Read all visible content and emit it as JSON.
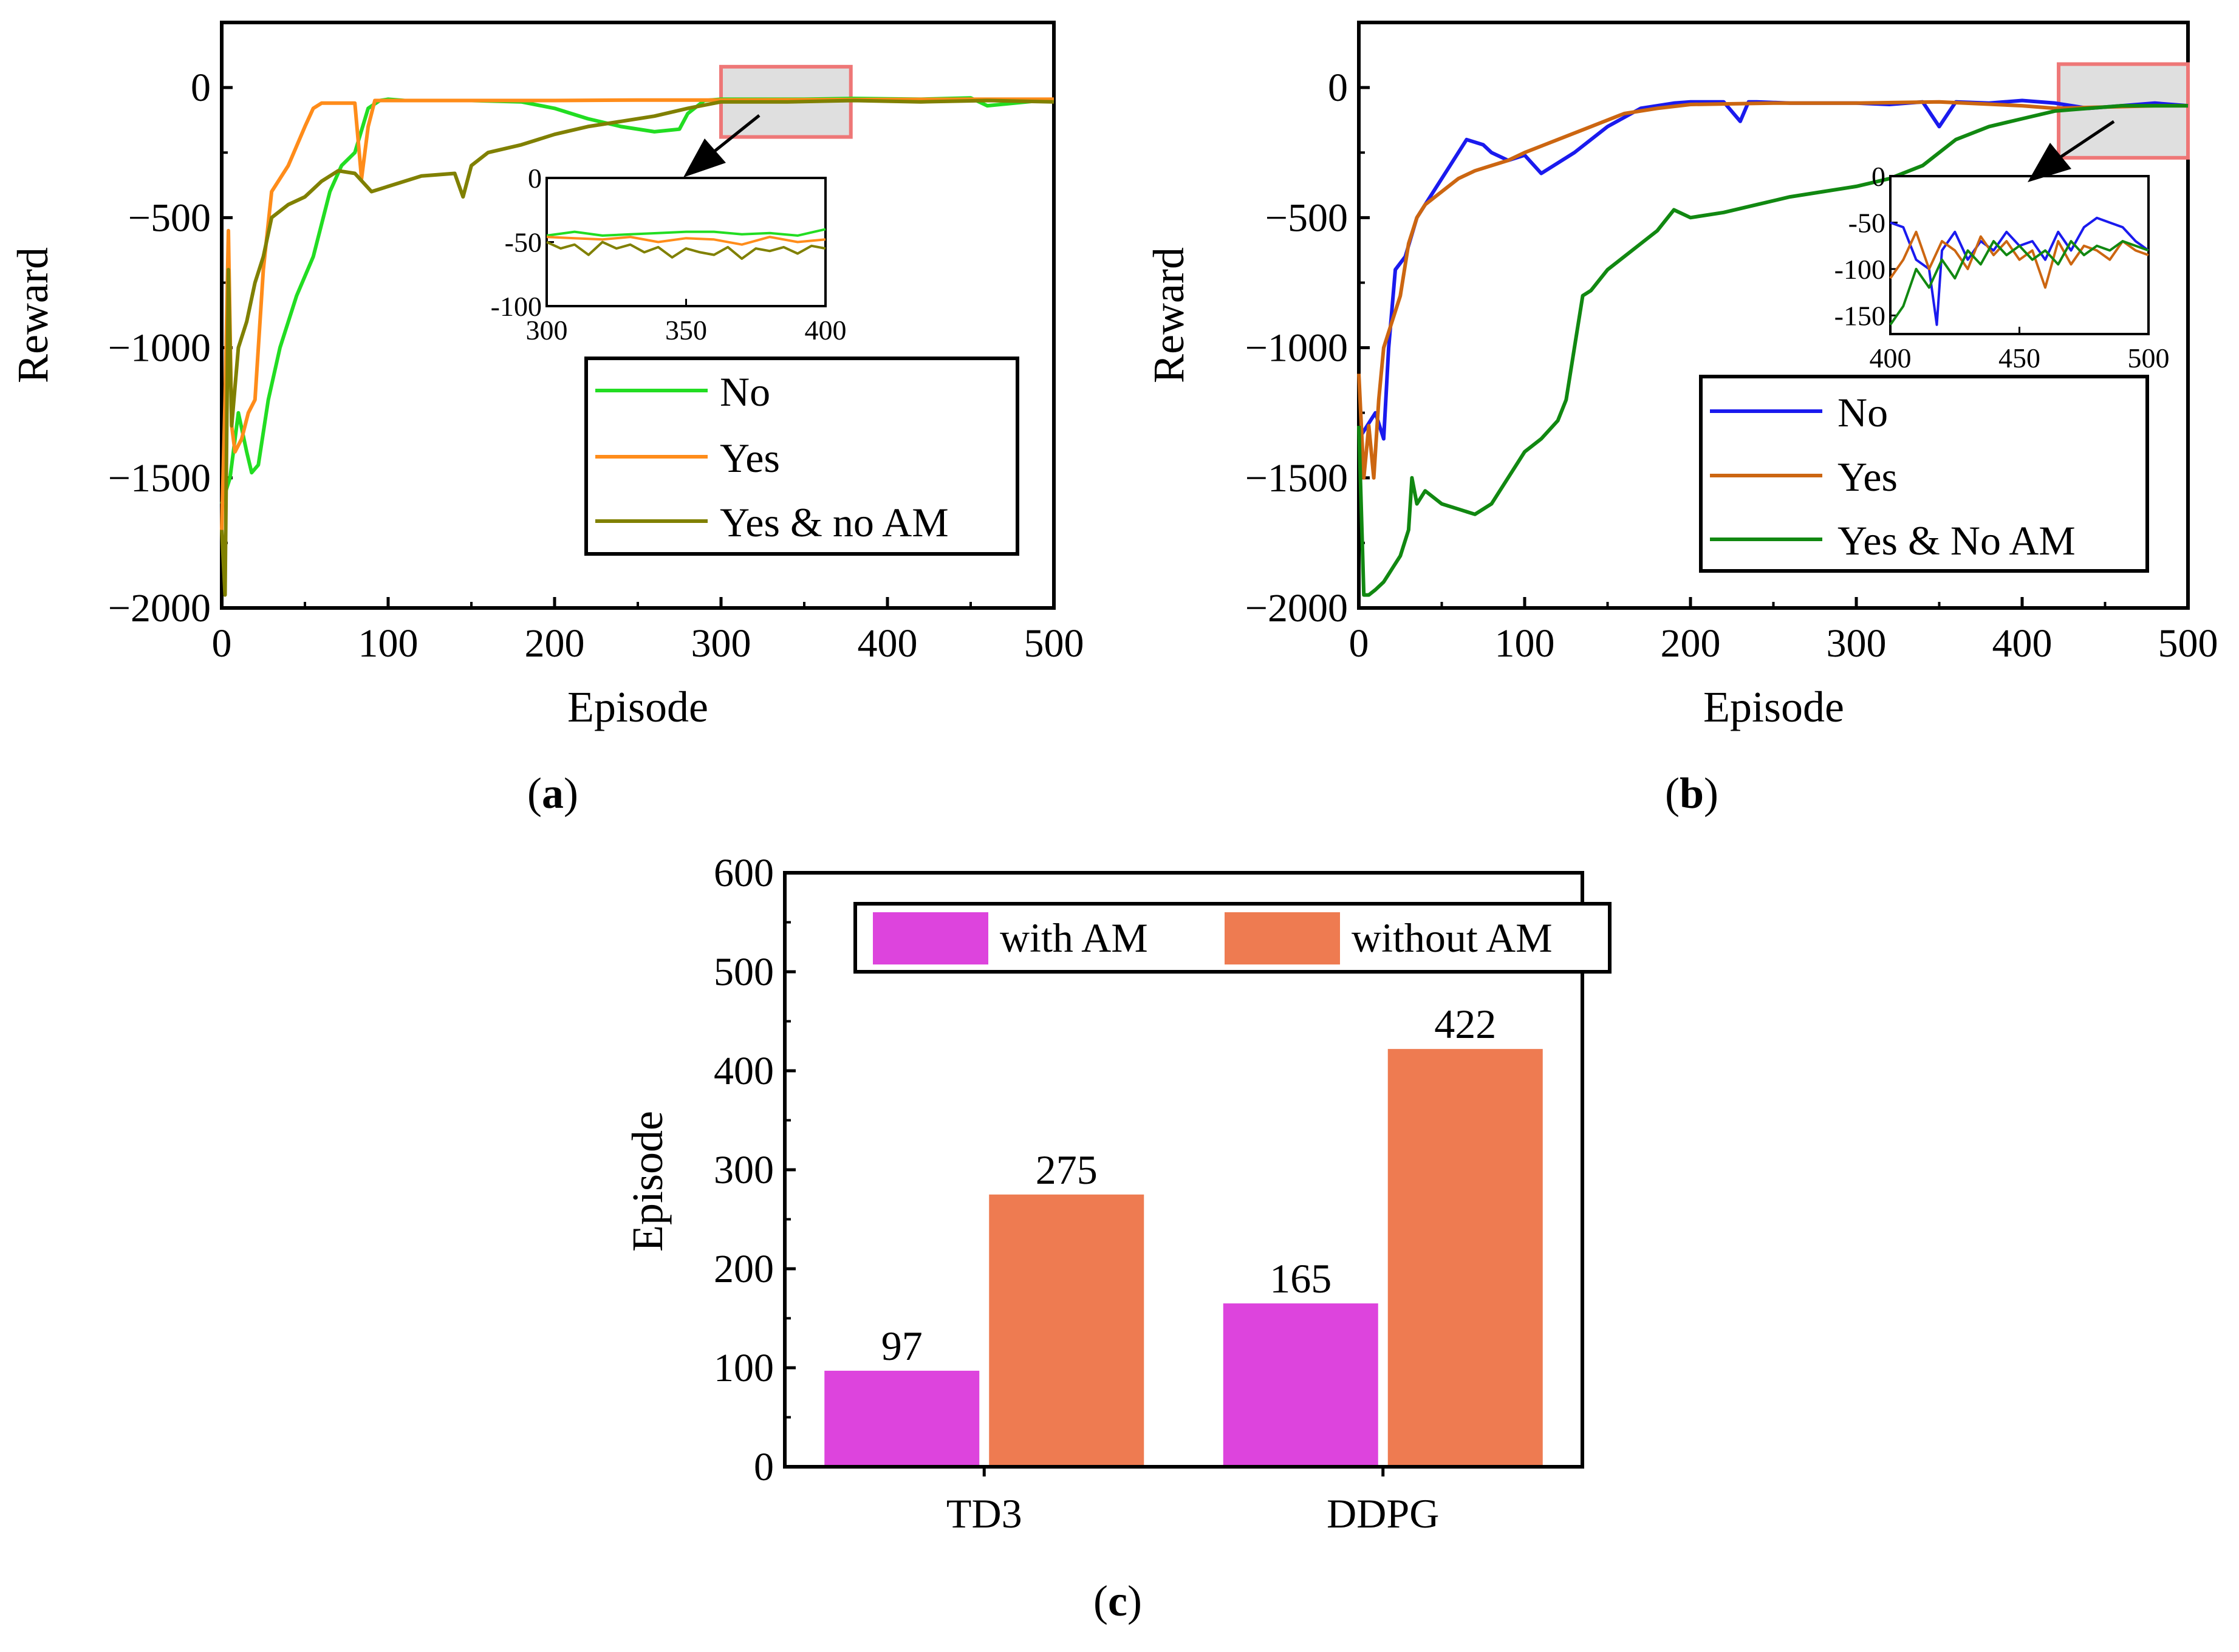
{
  "colors": {
    "a_no": "#22dd22",
    "a_yes": "#ff8c1a",
    "a_yes_no_am": "#808000",
    "b_no": "#1a1aee",
    "b_yes": "#cc6611",
    "b_yes_no_am": "#118811",
    "with_am": "#dd44dd",
    "without_am": "#ee7b51",
    "zoom_box_fill": "#d9d9d9",
    "zoom_box_edge": "#ee7777"
  },
  "chart_data": [
    {
      "id": "a",
      "type": "line",
      "caption": "a",
      "xlabel": "Episode",
      "ylabel": "Reward",
      "xlim": [
        0,
        500
      ],
      "ylim": [
        -2000,
        250
      ],
      "xticks": [
        "0",
        "100",
        "200",
        "300",
        "400",
        "500"
      ],
      "yticks": [
        "0",
        "−500",
        "−1000",
        "−1500",
        "−2000"
      ],
      "legend": [
        "No",
        "Yes",
        "Yes & no AM"
      ],
      "legend_position": "lower-right",
      "series": [
        {
          "name": "No",
          "color_key": "a_no",
          "x": [
            0,
            5,
            10,
            15,
            18,
            22,
            28,
            35,
            45,
            55,
            65,
            72,
            80,
            88,
            95,
            100,
            110,
            130,
            150,
            180,
            200,
            220,
            240,
            260,
            275,
            280,
            290,
            300,
            350,
            380,
            420,
            450,
            460,
            500
          ],
          "y": [
            -1600,
            -1500,
            -1250,
            -1400,
            -1480,
            -1450,
            -1200,
            -1000,
            -800,
            -650,
            -400,
            -300,
            -250,
            -80,
            -50,
            -45,
            -50,
            -50,
            -50,
            -55,
            -80,
            -120,
            -150,
            -170,
            -160,
            -100,
            -50,
            -45,
            -45,
            -42,
            -45,
            -40,
            -70,
            -45
          ]
        },
        {
          "name": "Yes",
          "color_key": "a_yes",
          "x": [
            0,
            2,
            4,
            6,
            8,
            12,
            16,
            20,
            25,
            30,
            40,
            50,
            55,
            60,
            70,
            80,
            84,
            88,
            92,
            100,
            150,
            200,
            250,
            300,
            350,
            400,
            450,
            500
          ],
          "y": [
            -1700,
            -1200,
            -550,
            -1300,
            -1400,
            -1350,
            -1250,
            -1200,
            -700,
            -400,
            -300,
            -150,
            -80,
            -60,
            -60,
            -60,
            -350,
            -150,
            -50,
            -50,
            -50,
            -50,
            -48,
            -48,
            -47,
            -46,
            -45,
            -45
          ]
        },
        {
          "name": "Yes & no AM",
          "color_key": "a_yes_no_am",
          "x": [
            0,
            2,
            4,
            6,
            10,
            15,
            20,
            25,
            30,
            40,
            50,
            60,
            70,
            80,
            90,
            100,
            120,
            140,
            145,
            150,
            160,
            180,
            200,
            220,
            240,
            260,
            280,
            300,
            340,
            380,
            420,
            460,
            500
          ],
          "y": [
            -1700,
            -1950,
            -700,
            -1300,
            -1000,
            -900,
            -750,
            -650,
            -500,
            -450,
            -420,
            -360,
            -320,
            -330,
            -400,
            -380,
            -340,
            -330,
            -420,
            -300,
            -250,
            -220,
            -180,
            -150,
            -130,
            -110,
            -80,
            -55,
            -55,
            -50,
            -55,
            -50,
            -55
          ]
        }
      ],
      "inset": {
        "xlim": [
          300,
          400
        ],
        "ylim": [
          -100,
          0
        ],
        "xticks": [
          "300",
          "350",
          "400"
        ],
        "yticks": [
          "0",
          "-50",
          "-100"
        ],
        "zoom_region": {
          "x": [
            300,
            378
          ],
          "y": [
            -190,
            80
          ]
        },
        "series": [
          {
            "name": "No",
            "color_key": "a_no",
            "x": [
              300,
              310,
              320,
              330,
              340,
              350,
              360,
              370,
              380,
              390,
              400
            ],
            "y": [
              -45,
              -42,
              -45,
              -44,
              -43,
              -42,
              -42,
              -44,
              -43,
              -45,
              -40
            ]
          },
          {
            "name": "Yes",
            "color_key": "a_yes",
            "x": [
              300,
              310,
              320,
              330,
              340,
              350,
              360,
              370,
              380,
              390,
              400
            ],
            "y": [
              -46,
              -47,
              -48,
              -46,
              -50,
              -47,
              -48,
              -52,
              -46,
              -50,
              -48
            ]
          },
          {
            "name": "Yes & no AM",
            "color_key": "a_yes_no_am",
            "x": [
              300,
              305,
              310,
              315,
              320,
              325,
              330,
              335,
              340,
              345,
              350,
              355,
              360,
              365,
              370,
              375,
              380,
              385,
              390,
              395,
              400
            ],
            "y": [
              -50,
              -55,
              -52,
              -60,
              -50,
              -55,
              -52,
              -58,
              -54,
              -62,
              -55,
              -58,
              -60,
              -54,
              -63,
              -55,
              -57,
              -54,
              -59,
              -53,
              -55
            ]
          }
        ]
      }
    },
    {
      "id": "b",
      "type": "line",
      "caption": "b",
      "xlabel": "Episode",
      "ylabel": "Reward",
      "xlim": [
        0,
        500
      ],
      "ylim": [
        -2000,
        250
      ],
      "xticks": [
        "0",
        "100",
        "200",
        "300",
        "400",
        "500"
      ],
      "yticks": [
        "0",
        "−500",
        "−1000",
        "−1500",
        "−2000"
      ],
      "legend": [
        "No",
        "Yes",
        "Yes & No AM"
      ],
      "legend_position": "lower-right",
      "series": [
        {
          "name": "No",
          "color_key": "b_no",
          "x": [
            0,
            5,
            10,
            15,
            18,
            22,
            28,
            35,
            45,
            55,
            65,
            75,
            80,
            90,
            100,
            110,
            130,
            150,
            170,
            190,
            200,
            220,
            230,
            235,
            240,
            260,
            280,
            300,
            320,
            340,
            350,
            360,
            380,
            400,
            420,
            440,
            460,
            480,
            500
          ],
          "y": [
            -1350,
            -1300,
            -1250,
            -1350,
            -1000,
            -700,
            -650,
            -500,
            -400,
            -300,
            -200,
            -220,
            -250,
            -280,
            -260,
            -330,
            -250,
            -150,
            -80,
            -60,
            -55,
            -55,
            -130,
            -55,
            -55,
            -60,
            -60,
            -60,
            -65,
            -55,
            -150,
            -55,
            -60,
            -50,
            -60,
            -80,
            -70,
            -60,
            -70
          ]
        },
        {
          "name": "Yes",
          "color_key": "b_yes",
          "x": [
            0,
            3,
            6,
            9,
            12,
            15,
            20,
            25,
            30,
            35,
            40,
            50,
            60,
            70,
            80,
            90,
            100,
            120,
            140,
            160,
            180,
            200,
            250,
            300,
            350,
            400,
            420,
            450,
            480,
            500
          ],
          "y": [
            -1100,
            -1500,
            -1300,
            -1500,
            -1200,
            -1000,
            -900,
            -800,
            -600,
            -500,
            -450,
            -400,
            -350,
            -320,
            -300,
            -280,
            -250,
            -200,
            -150,
            -100,
            -80,
            -65,
            -60,
            -60,
            -55,
            -70,
            -80,
            -75,
            -70,
            -70
          ]
        },
        {
          "name": "Yes & No AM",
          "color_key": "b_yes_no_am",
          "x": [
            0,
            3,
            6,
            10,
            15,
            20,
            25,
            30,
            32,
            35,
            40,
            50,
            60,
            70,
            80,
            90,
            100,
            110,
            120,
            125,
            130,
            135,
            140,
            150,
            160,
            170,
            180,
            190,
            200,
            220,
            240,
            260,
            280,
            300,
            320,
            340,
            360,
            380,
            400,
            420,
            440,
            460,
            480,
            500
          ],
          "y": [
            -1300,
            -1950,
            -1950,
            -1930,
            -1900,
            -1850,
            -1800,
            -1700,
            -1500,
            -1600,
            -1550,
            -1600,
            -1620,
            -1640,
            -1600,
            -1500,
            -1400,
            -1350,
            -1280,
            -1200,
            -1000,
            -800,
            -780,
            -700,
            -650,
            -600,
            -550,
            -470,
            -500,
            -480,
            -450,
            -420,
            -400,
            -380,
            -350,
            -300,
            -200,
            -150,
            -120,
            -90,
            -80,
            -70,
            -70,
            -70
          ]
        }
      ],
      "inset": {
        "xlim": [
          400,
          500
        ],
        "ylim": [
          -170,
          0
        ],
        "xticks": [
          "400",
          "450",
          "500"
        ],
        "yticks": [
          "0",
          "-50",
          "-100",
          "-150"
        ],
        "zoom_region": {
          "x": [
            422,
            500
          ],
          "y": [
            -270,
            90
          ]
        },
        "series": [
          {
            "name": "No",
            "color_key": "b_no",
            "x": [
              400,
              405,
              410,
              415,
              418,
              420,
              425,
              430,
              435,
              440,
              445,
              450,
              455,
              460,
              465,
              470,
              475,
              480,
              485,
              490,
              495,
              500
            ],
            "y": [
              -50,
              -55,
              -90,
              -100,
              -160,
              -80,
              -60,
              -90,
              -70,
              -80,
              -60,
              -75,
              -70,
              -90,
              -60,
              -80,
              -55,
              -45,
              -50,
              -55,
              -70,
              -80
            ]
          },
          {
            "name": "Yes",
            "color_key": "b_yes",
            "x": [
              400,
              405,
              410,
              415,
              420,
              425,
              430,
              435,
              440,
              445,
              450,
              455,
              460,
              465,
              470,
              475,
              480,
              485,
              490,
              495,
              500
            ],
            "y": [
              -110,
              -90,
              -60,
              -100,
              -70,
              -80,
              -100,
              -65,
              -85,
              -70,
              -90,
              -80,
              -120,
              -70,
              -95,
              -75,
              -80,
              -90,
              -70,
              -80,
              -85
            ]
          },
          {
            "name": "Yes & No AM",
            "color_key": "b_yes_no_am",
            "x": [
              400,
              405,
              410,
              415,
              420,
              425,
              430,
              435,
              440,
              445,
              450,
              455,
              460,
              465,
              470,
              475,
              480,
              485,
              490,
              495,
              500
            ],
            "y": [
              -160,
              -140,
              -100,
              -120,
              -90,
              -110,
              -80,
              -95,
              -70,
              -85,
              -75,
              -90,
              -80,
              -95,
              -70,
              -85,
              -75,
              -80,
              -70,
              -75,
              -80
            ]
          }
        ]
      }
    },
    {
      "id": "c",
      "type": "bar",
      "caption": "c",
      "xlabel": "",
      "ylabel": "Episode",
      "ylim": [
        0,
        600
      ],
      "yticks": [
        "0",
        "100",
        "200",
        "300",
        "400",
        "500",
        "600"
      ],
      "categories": [
        "TD3",
        "DDPG"
      ],
      "legend": [
        "with AM",
        "without AM"
      ],
      "legend_position": "top",
      "series": [
        {
          "name": "with AM",
          "color_key": "with_am",
          "values": [
            97,
            165
          ],
          "labels": [
            "97",
            "165"
          ]
        },
        {
          "name": "without AM",
          "color_key": "without_am",
          "values": [
            275,
            422
          ],
          "labels": [
            "275",
            "422"
          ]
        }
      ]
    }
  ]
}
